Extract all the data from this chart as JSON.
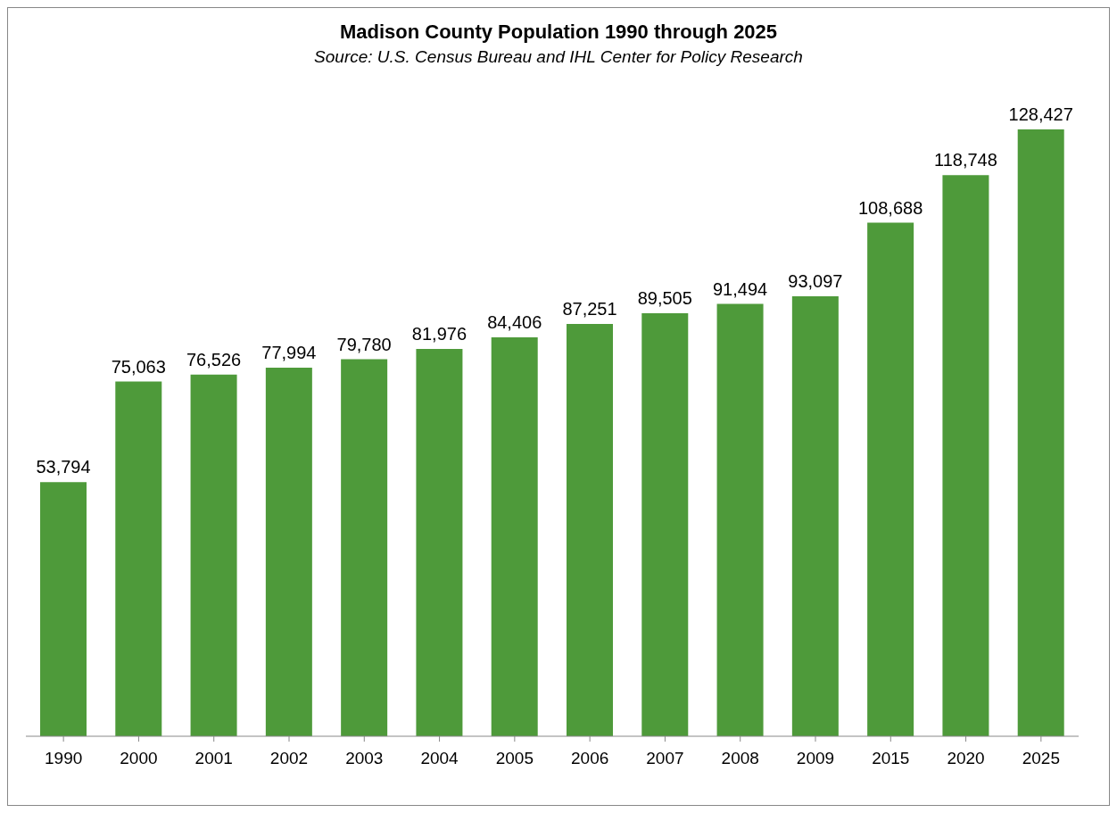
{
  "chart_data": {
    "type": "bar",
    "title": "Madison County Population 1990 through 2025",
    "subtitle": "Source: U.S. Census Bureau and IHL Center for Policy Research",
    "categories": [
      "1990",
      "2000",
      "2001",
      "2002",
      "2003",
      "2004",
      "2005",
      "2006",
      "2007",
      "2008",
      "2009",
      "2015",
      "2020",
      "2025"
    ],
    "values": [
      53794,
      75063,
      76526,
      77994,
      79780,
      81976,
      84406,
      87251,
      89505,
      91494,
      93097,
      108688,
      118748,
      128427
    ],
    "value_labels": [
      "53,794",
      "75,063",
      "76,526",
      "77,994",
      "79,780",
      "81,976",
      "84,406",
      "87,251",
      "89,505",
      "91,494",
      "93,097",
      "108,688",
      "118,748",
      "128,427"
    ],
    "color": "#4e9a3a",
    "tick_labels": "x"
  }
}
